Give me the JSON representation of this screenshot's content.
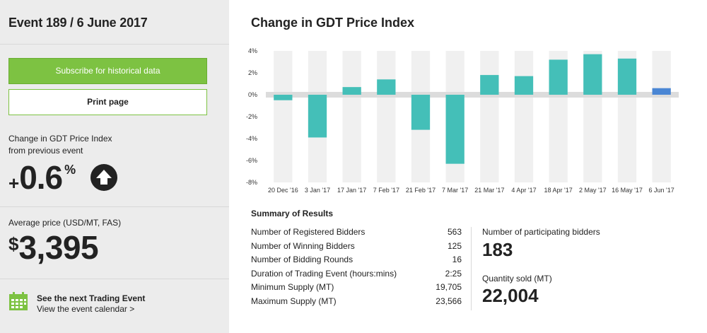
{
  "sidebar": {
    "event_title": "Event 189 / 6 June 2017",
    "subscribe_label": "Subscribe for historical data",
    "print_label": "Print page",
    "change_label_line1": "Change in GDT Price Index",
    "change_label_line2": "from previous event",
    "change_sign": "+",
    "change_value": "0.6",
    "change_unit": "%",
    "change_direction_icon": "arrow-up-circle-icon",
    "avg_label": "Average price (USD/MT, FAS)",
    "avg_currency": "$",
    "avg_value": "3,395",
    "next_event_title": "See the next Trading Event",
    "next_event_link": "View the event calendar >",
    "calendar_icon": "calendar-icon"
  },
  "main": {
    "chart_title": "Change in GDT Price Index",
    "summary_title": "Summary of Results",
    "summary_rows": [
      {
        "label": "Number of Registered Bidders",
        "value": "563"
      },
      {
        "label": "Number of Winning Bidders",
        "value": "125"
      },
      {
        "label": "Number of Bidding Rounds",
        "value": "16"
      },
      {
        "label": "Duration of Trading Event (hours:mins)",
        "value": "2:25"
      },
      {
        "label": "Minimum Supply (MT)",
        "value": "19,705"
      },
      {
        "label": "Maximum Supply (MT)",
        "value": "23,566"
      }
    ],
    "bidders_label": "Number of participating bidders",
    "bidders_value": "183",
    "qty_label": "Quantity sold (MT)",
    "qty_value": "22,004"
  },
  "chart_data": {
    "type": "bar",
    "categories": [
      "20 Dec '16",
      "3 Jan '17",
      "17 Jan '17",
      "7 Feb '17",
      "21 Feb '17",
      "7 Mar '17",
      "21 Mar '17",
      "4 Apr '17",
      "18 Apr '17",
      "2 May '17",
      "16 May '17",
      "6 Jun '17"
    ],
    "values": [
      -0.5,
      -3.9,
      0.7,
      1.4,
      -3.2,
      -6.3,
      1.8,
      1.7,
      3.2,
      3.7,
      3.3,
      0.6
    ],
    "yticks": [
      "4%",
      "2%",
      "0%",
      "-2%",
      "-4%",
      "-6%",
      "-8%"
    ],
    "ylim": [
      -8,
      4
    ],
    "colors": {
      "bar": "#44bfb8",
      "highlight": "#4a86d4",
      "column_bg": "#f0f0f0",
      "zero_band": "#dcdcdc"
    },
    "highlight_index": 11
  },
  "colors": {
    "accent": "#7dc242",
    "sidebar_bg": "#ececec"
  }
}
